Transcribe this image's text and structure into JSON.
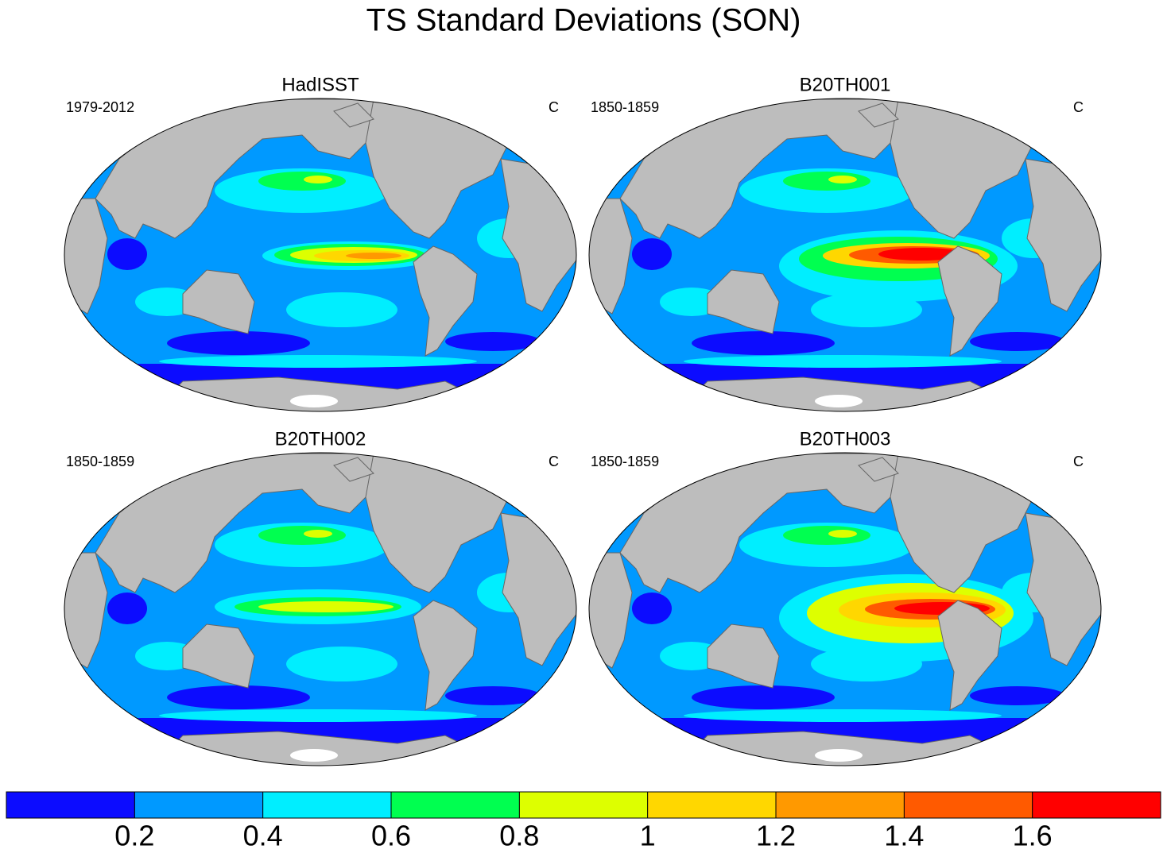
{
  "title": "TS Standard Deviations (SON)",
  "panels": [
    {
      "title": "HadISST",
      "period": "1979-2012",
      "units": "C"
    },
    {
      "title": "B20TH001",
      "period": "1850-1859",
      "units": "C"
    },
    {
      "title": "B20TH002",
      "period": "1850-1859",
      "units": "C"
    },
    {
      "title": "B20TH003",
      "period": "1850-1859",
      "units": "C"
    }
  ],
  "colorbar": {
    "colors": [
      "#0c0cff",
      "#0099ff",
      "#00eeff",
      "#00ff50",
      "#ddff00",
      "#ffd700",
      "#ff9900",
      "#ff5a00",
      "#ff0000"
    ],
    "lim": [
      0,
      1.8
    ],
    "ticks": [
      0.2,
      0.4,
      0.6,
      0.8,
      1,
      1.2,
      1.4,
      1.6
    ]
  }
}
